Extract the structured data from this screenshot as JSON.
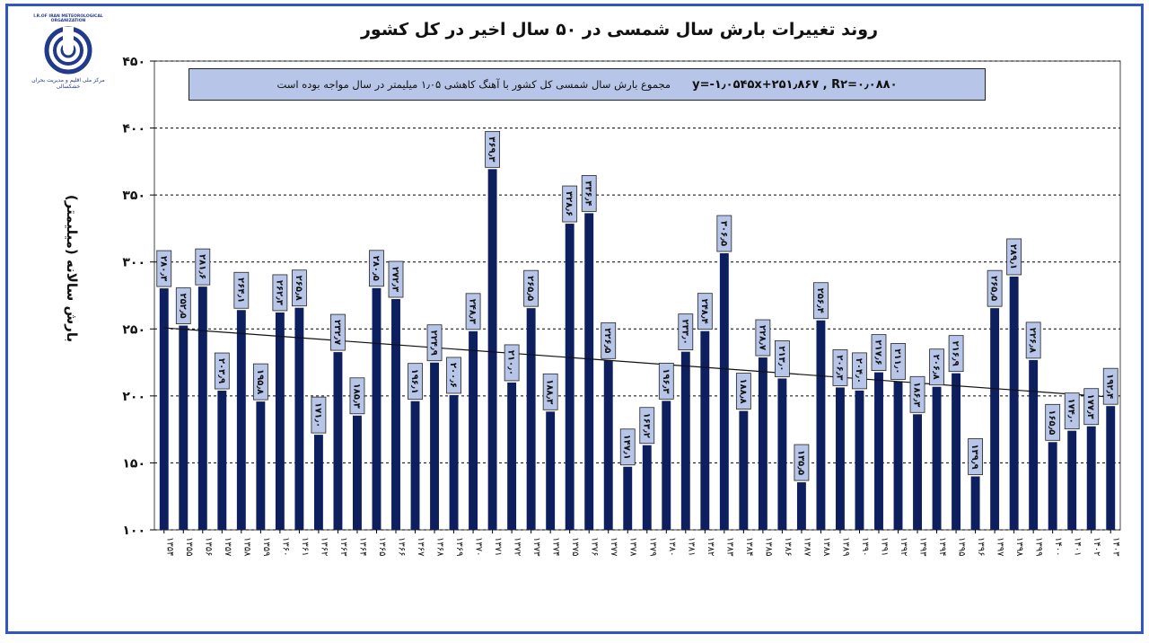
{
  "logo": {
    "name": "I.R.OF IRAN METEOROLOGICAL ORGANIZATION",
    "org": "مرکز ملی اقلیم و مدیریت بحران خشکسالی"
  },
  "chart_data": {
    "type": "bar",
    "title": "روند تغییرات بارش سال شمسی در ۵۰ سال اخیر در کل کشور",
    "ylabel": "بارش سالانه (میلیمتر)",
    "xlabel": "",
    "ylim": [
      100,
      450
    ],
    "yticks": [
      "۱۰۰",
      "۱۵۰",
      "۲۰۰",
      "۲۵۰",
      "۳۰۰",
      "۳۵۰",
      "۴۰۰",
      "۴۵۰"
    ],
    "categories": [
      "۱۳۵۴",
      "۱۳۵۵",
      "۱۳۵۶",
      "۱۳۵۷",
      "۱۳۵۸",
      "۱۳۵۹",
      "۱۳۶۰",
      "۱۳۶۱",
      "۱۳۶۲",
      "۱۳۶۳",
      "۱۳۶۴",
      "۱۳۶۵",
      "۱۳۶۶",
      "۱۳۶۷",
      "۱۳۶۸",
      "۱۳۶۹",
      "۱۳۷۰",
      "۱۳۷۱",
      "۱۳۷۲",
      "۱۳۷۳",
      "۱۳۷۴",
      "۱۳۷۵",
      "۱۳۷۶",
      "۱۳۷۷",
      "۱۳۷۸",
      "۱۳۷۹",
      "۱۳۸۰",
      "۱۳۸۱",
      "۱۳۸۲",
      "۱۳۸۳",
      "۱۳۸۴",
      "۱۳۸۵",
      "۱۳۸۶",
      "۱۳۸۷",
      "۱۳۸۸",
      "۱۳۸۹",
      "۱۳۹۰",
      "۱۳۹۱",
      "۱۳۹۲",
      "۱۳۹۳",
      "۱۳۹۴",
      "۱۳۹۵",
      "۱۳۹۶",
      "۱۳۹۷",
      "۱۳۹۸",
      "۱۳۹۹",
      "۱۴۰۰",
      "۱۴۰۱",
      "۱۴۰۲",
      "۱۴۰۳"
    ],
    "values": [
      280.3,
      252.5,
      281.6,
      203.9,
      264.1,
      195.8,
      262.3,
      265.8,
      171,
      232.7,
      185.3,
      280.5,
      272.3,
      196.1,
      224.9,
      200.6,
      248.3,
      369.3,
      210.0,
      265.5,
      188.3,
      328.6,
      336.4,
      226.5,
      147.1,
      163.2,
      196.3,
      233.0,
      248.4,
      306.5,
      188.8,
      228.7,
      213.0,
      135.5,
      256.4,
      206.3,
      204.0,
      217.6,
      211.0,
      186.3,
      206.8,
      216.9,
      139.9,
      265.5,
      289.1,
      226.8,
      165.5,
      174.0,
      177.3,
      192.4
    ],
    "labels": [
      "۲۸۰٫۳",
      "۲۵۲٫۵",
      "۲۸۱٫۶",
      "۲۰۳٫۹",
      "۲۶۴٫۱",
      "۱۹۵٫۸",
      "۲۶۲٫۳",
      "۲۶۵٫۸",
      "۱۷۱٫۰",
      "۲۳۲٫۷",
      "۱۸۵٫۳",
      "۲۸۰٫۵",
      "۲۷۲٫۳",
      "۱۹۶٫۱",
      "۲۲۴٫۹",
      "۲۰۰٫۶",
      "۲۴۸٫۳",
      "۳۶۹٫۳",
      "۲۱۰٫۰",
      "۲۶۵٫۵",
      "۱۸۸٫۳",
      "۳۲۸٫۶",
      "۳۳۶٫۴",
      "۲۲۶٫۵",
      "۱۴۷٫۱",
      "۱۶۳٫۲",
      "۱۹۶٫۳",
      "۲۳۳٫۰",
      "۲۴۸٫۴",
      "۳۰۶٫۵",
      "۱۸۸٫۸",
      "۲۲۸٫۷",
      "۲۱۳٫۰",
      "۱۳۵٫۵",
      "۲۵۶٫۴",
      "۲۰۶٫۳",
      "۲۰۴٫۰",
      "۲۱۷٫۶",
      "۲۱۱٫۰",
      "۱۸۶٫۳",
      "۲۰۶٫۸",
      "۲۱۶٫۹",
      "۱۳۹٫۹",
      "۲۶۵٫۵",
      "۲۸۹٫۱",
      "۲۲۶٫۸",
      "۱۶۵٫۵",
      "۱۷۴٫۰",
      "۱۷۷٫۳",
      "۱۹۲٫۴"
    ],
    "trendline": {
      "type": "linear",
      "equation": "y=-۱٫۰۵۴۵x+۲۵۱٫۸۶۷ , R۲=۰٫۰۸۸۰",
      "slope": -1.0545,
      "intercept": 251.867
    },
    "annotation": "مجموع بارش سال شمسی کل کشور با آهنگ کاهشی ۱٫۰۵ میلیمتر در سال مواجه بوده است",
    "grid": "horizontal",
    "legend": "none",
    "colors": {
      "bar": "#0d1f5e",
      "label_bg": "#b7c5e8",
      "annotation_bg": "#b7c5e8",
      "frame": "#2f56c4",
      "trend": "#111111"
    }
  }
}
